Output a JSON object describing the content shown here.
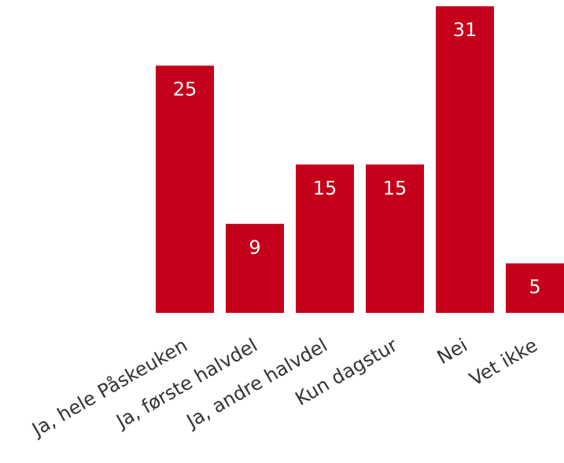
{
  "chart_data": {
    "type": "bar",
    "categories": [
      "Ja, hele Påskeuken",
      "Ja, første halvdel",
      "Ja, andre halvdel",
      "Kun dagstur",
      "Nei",
      "Vet ikke"
    ],
    "values": [
      25,
      9,
      15,
      15,
      31,
      5
    ],
    "value_labels": [
      "25",
      "9",
      "15",
      "15",
      "31",
      "5"
    ],
    "title": "",
    "xlabel": "",
    "ylabel": "",
    "ylim": [
      0,
      31
    ],
    "grid": false,
    "legend": "none",
    "bar_color": "#c4001a"
  }
}
